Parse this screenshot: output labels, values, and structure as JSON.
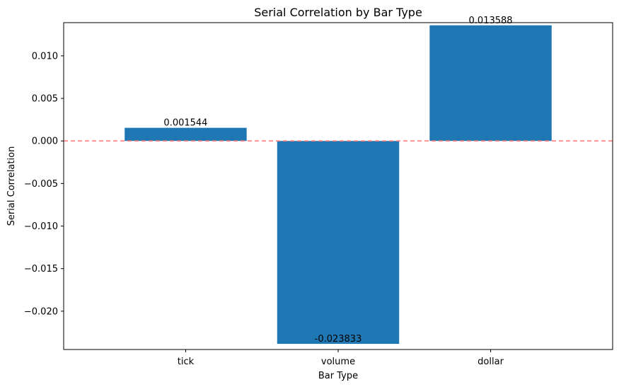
{
  "chart_data": {
    "type": "bar",
    "title": "Serial Correlation by Bar Type",
    "xlabel": "Bar Type",
    "ylabel": "Serial Correlation",
    "categories": [
      "tick",
      "volume",
      "dollar"
    ],
    "values": [
      0.001544,
      -0.023833,
      0.013588
    ],
    "data_labels": [
      "0.001544",
      "-0.023833",
      "0.013588"
    ],
    "ylim": [
      -0.0245,
      0.0139
    ],
    "yticks": [
      0.01,
      0.005,
      0.0,
      -0.005,
      -0.01,
      -0.015,
      -0.02
    ],
    "ytick_labels": [
      "0.010",
      "0.005",
      "0.000",
      "−0.005",
      "−0.010",
      "−0.015",
      "−0.020"
    ],
    "reference_line": {
      "y": 0,
      "style": "dashed"
    },
    "grid": false,
    "colors": {
      "bar": "#1f77b4",
      "reference_line": "#ff7f7f",
      "axis": "#000000"
    }
  }
}
